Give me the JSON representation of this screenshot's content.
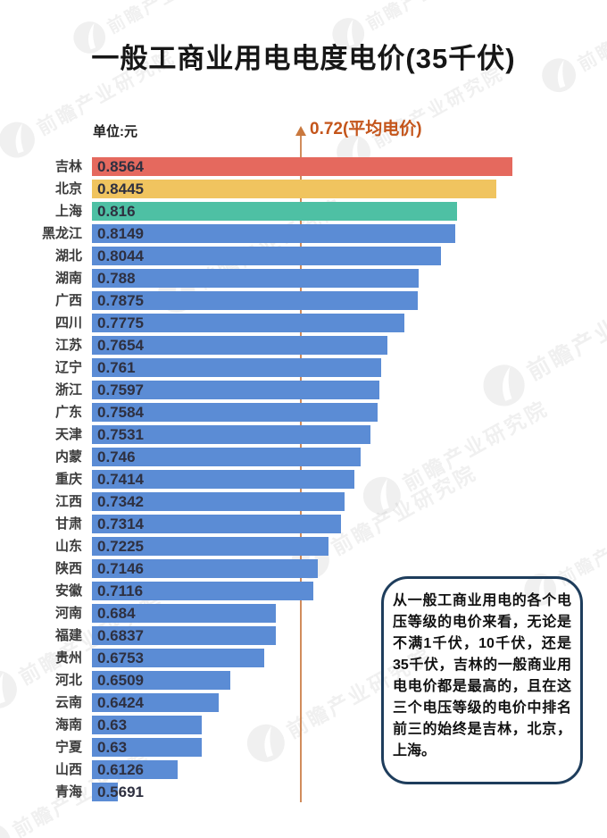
{
  "page": {
    "title": "一般工商业用电电度电价(35千伏)",
    "unit_label": "单位:元",
    "watermark_text": "前瞻产业研究院"
  },
  "chart_data": {
    "type": "bar",
    "orientation": "horizontal",
    "title": "一般工商业用电电度电价(35千伏)",
    "unit": "单位:元",
    "categories": [
      "吉林",
      "北京",
      "上海",
      "黑龙江",
      "湖北",
      "湖南",
      "广西",
      "四川",
      "江苏",
      "辽宁",
      "浙江",
      "广东",
      "天津",
      "内蒙",
      "重庆",
      "江西",
      "甘肃",
      "山东",
      "陕西",
      "安徽",
      "河南",
      "福建",
      "贵州",
      "河北",
      "云南",
      "海南",
      "宁夏",
      "山西",
      "青海"
    ],
    "values": [
      0.8564,
      0.8445,
      0.816,
      0.8149,
      0.8044,
      0.788,
      0.7875,
      0.7775,
      0.7654,
      0.761,
      0.7597,
      0.7584,
      0.7531,
      0.746,
      0.7414,
      0.7342,
      0.7314,
      0.7225,
      0.7146,
      0.7116,
      0.684,
      0.6837,
      0.6753,
      0.6509,
      0.6424,
      0.63,
      0.63,
      0.6126,
      0.5691
    ],
    "value_labels": [
      "0.8564",
      "0.8445",
      "0.816",
      "0.8149",
      "0.8044",
      "0.788",
      "0.7875",
      "0.7775",
      "0.7654",
      "0.761",
      "0.7597",
      "0.7584",
      "0.7531",
      "0.746",
      "0.7414",
      "0.7342",
      "0.7314",
      "0.7225",
      "0.7146",
      "0.7116",
      "0.684",
      "0.6837",
      "0.6753",
      "0.6509",
      "0.6424",
      "0.63",
      "0.63",
      "0.6126",
      "0.5691"
    ],
    "xlim": [
      0.55,
      0.87
    ],
    "grid": false,
    "legend": false,
    "average_line": {
      "value": 0.72,
      "label": "0.72(平均电价)"
    },
    "colors": {
      "bar_highlights": [
        "#e5695e",
        "#f0c45f",
        "#4ec0a4"
      ],
      "bar_default": "#5b8cd5",
      "average_line": "#c9783e",
      "average_label": "#c4551b"
    }
  },
  "callout": {
    "text": "从一般工商业用电的各个电压等级的电价来看，无论是不满1千伏，10千伏，还是35千伏，吉林的一般商业用电电价都是最高的，且在这三个电压等级的电价中排名前三的始终是吉林，北京，上海。"
  }
}
